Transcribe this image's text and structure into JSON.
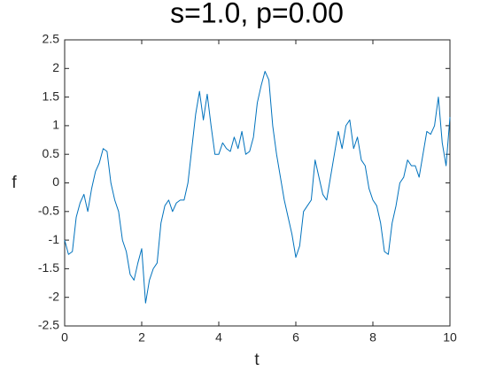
{
  "chart_data": {
    "type": "line",
    "title": "s=1.0, p=0.00",
    "x_label": "t",
    "y_label": "f",
    "x": [
      0,
      0.1,
      0.2,
      0.3,
      0.4,
      0.5,
      0.6,
      0.7,
      0.8,
      0.9,
      1,
      1.1,
      1.2,
      1.3,
      1.4,
      1.5,
      1.6,
      1.7,
      1.8,
      1.9,
      2,
      2.1,
      2.2,
      2.3,
      2.4,
      2.5,
      2.6,
      2.7,
      2.8,
      2.9,
      3,
      3.1,
      3.2,
      3.3,
      3.4,
      3.5,
      3.6,
      3.7,
      3.8,
      3.9,
      4,
      4.1,
      4.2,
      4.3,
      4.4,
      4.5,
      4.6,
      4.7,
      4.8,
      4.9,
      5,
      5.1,
      5.2,
      5.3,
      5.4,
      5.5,
      5.6,
      5.7,
      5.8,
      5.9,
      6,
      6.1,
      6.2,
      6.3,
      6.4,
      6.5,
      6.6,
      6.7,
      6.8,
      6.9,
      7,
      7.1,
      7.2,
      7.3,
      7.4,
      7.5,
      7.6,
      7.7,
      7.8,
      7.9,
      8,
      8.1,
      8.2,
      8.3,
      8.4,
      8.5,
      8.6,
      8.7,
      8.8,
      8.9,
      9,
      9.1,
      9.2,
      9.3,
      9.4,
      9.5,
      9.6,
      9.7,
      9.8,
      9.9,
      10
    ],
    "series": [
      {
        "color": "#0072bd",
        "values": [
          -1.0,
          -1.25,
          -1.2,
          -0.6,
          -0.35,
          -0.2,
          -0.5,
          -0.1,
          0.2,
          0.35,
          0.6,
          0.55,
          0.0,
          -0.3,
          -0.5,
          -1.0,
          -1.2,
          -1.6,
          -1.7,
          -1.4,
          -1.15,
          -2.1,
          -1.7,
          -1.5,
          -1.4,
          -0.7,
          -0.4,
          -0.3,
          -0.5,
          -0.35,
          -0.3,
          -0.3,
          0.0,
          0.6,
          1.2,
          1.6,
          1.1,
          1.55,
          1.0,
          0.5,
          0.5,
          0.7,
          0.6,
          0.55,
          0.8,
          0.6,
          0.9,
          0.5,
          0.55,
          0.8,
          1.4,
          1.7,
          1.95,
          1.8,
          1.0,
          0.5,
          0.1,
          -0.3,
          -0.6,
          -0.9,
          -1.3,
          -1.1,
          -0.5,
          -0.4,
          -0.3,
          0.4,
          0.1,
          -0.2,
          -0.3,
          0.1,
          0.5,
          0.9,
          0.6,
          1.0,
          1.1,
          0.6,
          0.8,
          0.4,
          0.3,
          -0.1,
          -0.3,
          -0.4,
          -0.7,
          -1.2,
          -1.25,
          -0.7,
          -0.4,
          0.0,
          0.1,
          0.4,
          0.3,
          0.3,
          0.1,
          0.5,
          0.9,
          0.85,
          1.0,
          1.5,
          0.7,
          0.3,
          1.15
        ]
      }
    ],
    "xlim": [
      0,
      10
    ],
    "xticks": [
      0,
      2,
      4,
      6,
      8,
      10
    ],
    "ylim": [
      -2.5,
      2.5
    ],
    "yticks": [
      -2.5,
      -2,
      -1.5,
      -1,
      -0.5,
      0,
      0.5,
      1,
      1.5,
      2,
      2.5
    ],
    "grid": false
  }
}
